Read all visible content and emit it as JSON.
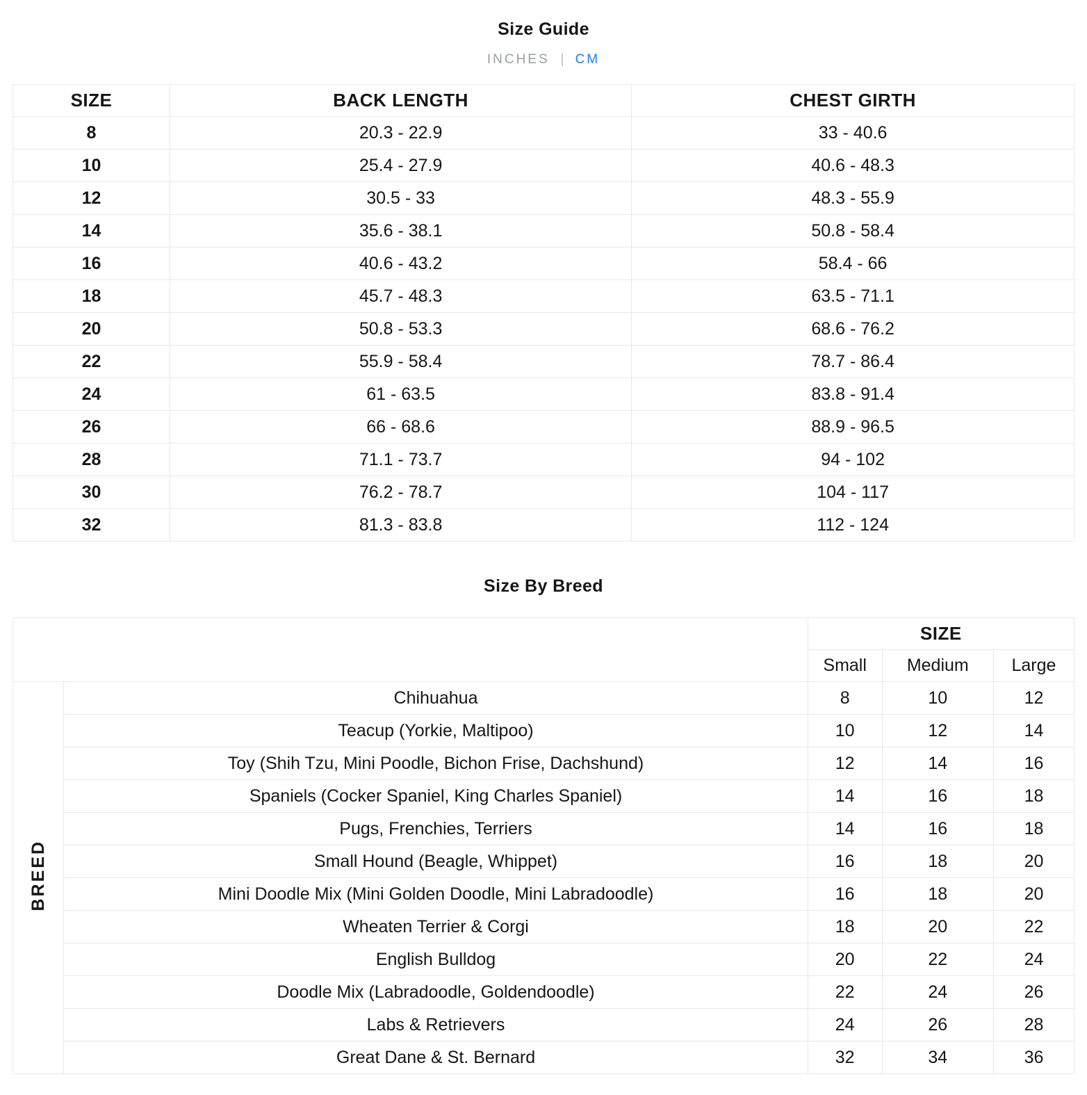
{
  "page": {
    "title": "Size Guide",
    "unit_toggle": {
      "inches_label": "INCHES",
      "separator": "|",
      "cm_label": "CM",
      "active_unit": "CM"
    },
    "size_table": {
      "columns": [
        "SIZE",
        "BACK LENGTH",
        "CHEST GIRTH"
      ],
      "rows": [
        [
          "8",
          "20.3 - 22.9",
          "33 - 40.6"
        ],
        [
          "10",
          "25.4 - 27.9",
          "40.6 - 48.3"
        ],
        [
          "12",
          "30.5 - 33",
          "48.3 - 55.9"
        ],
        [
          "14",
          "35.6 - 38.1",
          "50.8 - 58.4"
        ],
        [
          "16",
          "40.6 - 43.2",
          "58.4 - 66"
        ],
        [
          "18",
          "45.7 - 48.3",
          "63.5 - 71.1"
        ],
        [
          "20",
          "50.8 - 53.3",
          "68.6 - 76.2"
        ],
        [
          "22",
          "55.9 - 58.4",
          "78.7 - 86.4"
        ],
        [
          "24",
          "61 - 63.5",
          "83.8 - 91.4"
        ],
        [
          "26",
          "66 - 68.6",
          "88.9 - 96.5"
        ],
        [
          "28",
          "71.1 - 73.7",
          "94 - 102"
        ],
        [
          "30",
          "76.2 - 78.7",
          "104 - 117"
        ],
        [
          "32",
          "81.3 - 83.8",
          "112 - 124"
        ]
      ]
    },
    "breed_section": {
      "title": "Size By Breed",
      "size_header": "SIZE",
      "breed_header": "BREED",
      "size_columns": [
        "Small",
        "Medium",
        "Large"
      ],
      "rows": [
        {
          "breed": "Chihuahua",
          "sizes": [
            "8",
            "10",
            "12"
          ]
        },
        {
          "breed": "Teacup (Yorkie, Maltipoo)",
          "sizes": [
            "10",
            "12",
            "14"
          ]
        },
        {
          "breed": "Toy (Shih Tzu, Mini Poodle, Bichon Frise, Dachshund)",
          "sizes": [
            "12",
            "14",
            "16"
          ]
        },
        {
          "breed": "Spaniels (Cocker Spaniel, King Charles Spaniel)",
          "sizes": [
            "14",
            "16",
            "18"
          ]
        },
        {
          "breed": "Pugs, Frenchies, Terriers",
          "sizes": [
            "14",
            "16",
            "18"
          ]
        },
        {
          "breed": "Small Hound (Beagle, Whippet)",
          "sizes": [
            "16",
            "18",
            "20"
          ]
        },
        {
          "breed": "Mini Doodle Mix (Mini Golden Doodle, Mini Labradoodle)",
          "sizes": [
            "16",
            "18",
            "20"
          ]
        },
        {
          "breed": "Wheaten Terrier & Corgi",
          "sizes": [
            "18",
            "20",
            "22"
          ]
        },
        {
          "breed": "English Bulldog",
          "sizes": [
            "20",
            "22",
            "24"
          ]
        },
        {
          "breed": "Doodle Mix (Labradoodle, Goldendoodle)",
          "sizes": [
            "22",
            "24",
            "26"
          ]
        },
        {
          "breed": "Labs & Retrievers",
          "sizes": [
            "24",
            "26",
            "28"
          ]
        },
        {
          "breed": "Great Dane & St. Bernard",
          "sizes": [
            "32",
            "34",
            "36"
          ]
        }
      ]
    },
    "colors": {
      "accent_blue": "#1e7fe8",
      "inactive_gray": "#9b9ea3",
      "border": "#e7e8ea"
    }
  }
}
